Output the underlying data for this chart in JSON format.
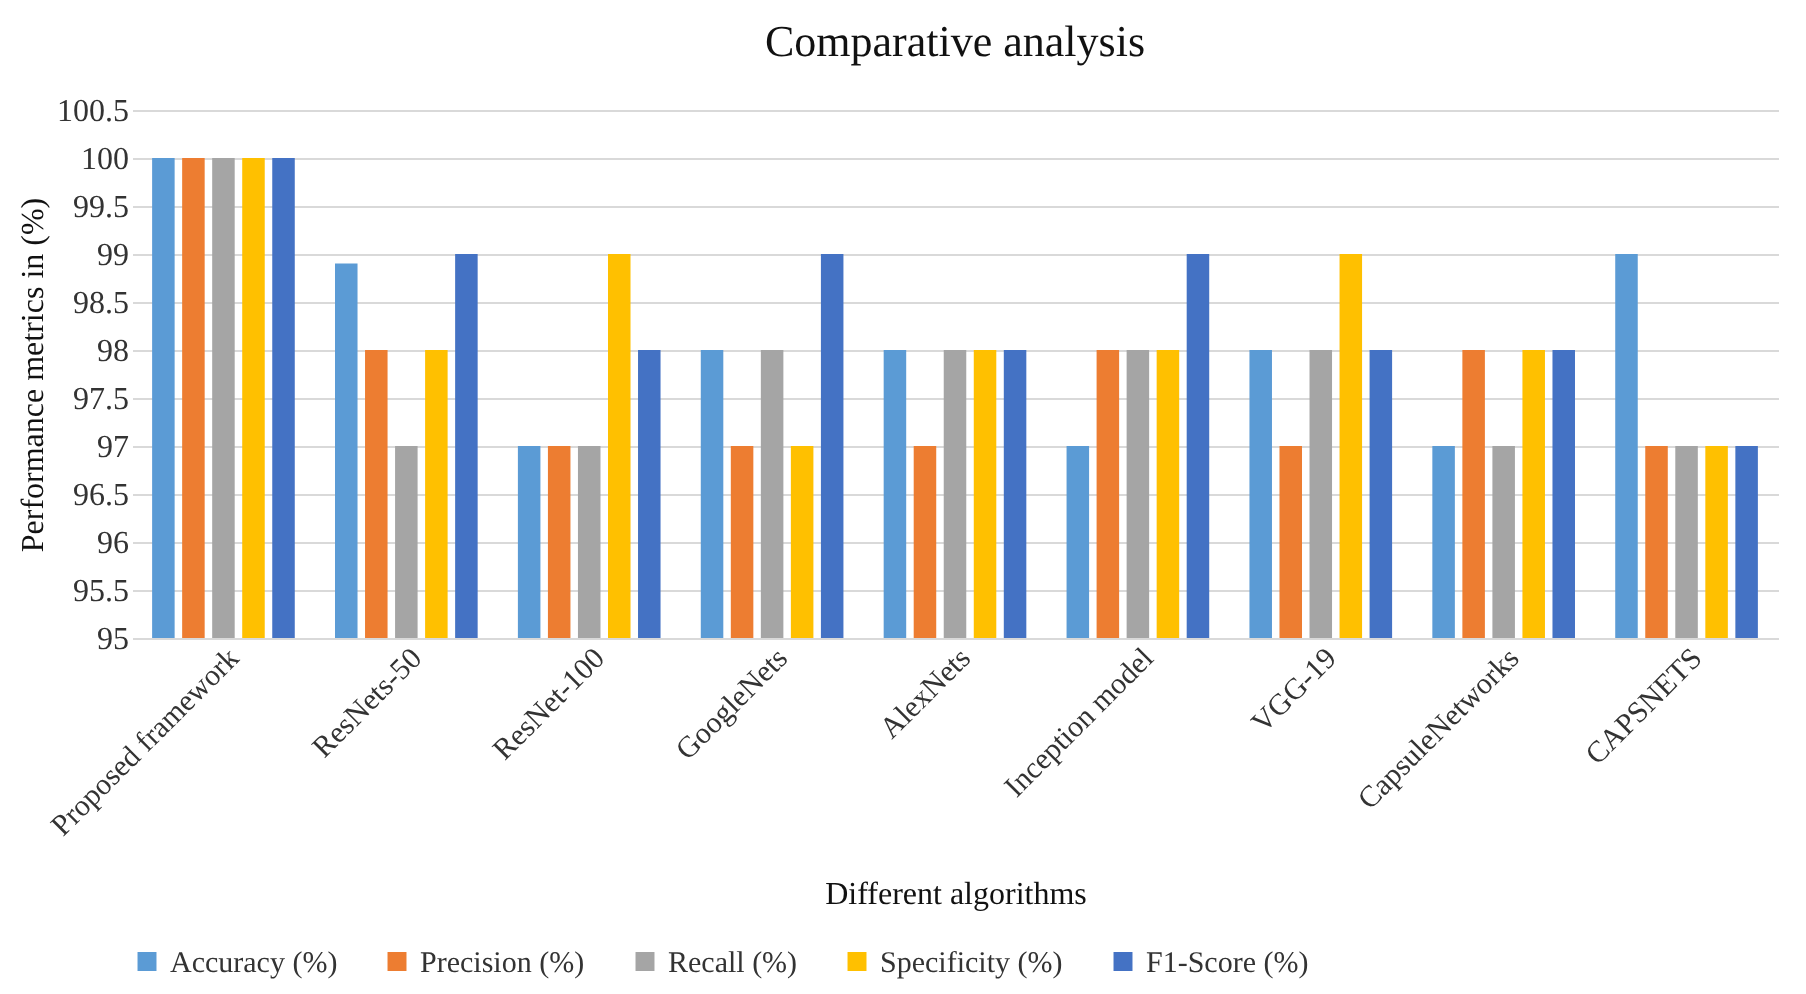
{
  "chart_data": {
    "type": "bar",
    "title": "Comparative analysis",
    "xlabel": "Different algorithms",
    "ylabel": "Performance metrics in (%)",
    "categories": [
      "Proposed framework",
      "ResNets-50",
      "ResNet-100",
      "GoogleNets",
      "AlexNets",
      "Inception model",
      "VGG-19",
      "CapsuleNetworks",
      "CAPSNETS"
    ],
    "series": [
      {
        "name": "Accuracy (%)",
        "color": "#5b9bd5",
        "values": [
          100,
          98.9,
          97,
          98,
          98,
          97,
          98,
          97,
          99
        ]
      },
      {
        "name": "Precision (%)",
        "color": "#ed7d31",
        "values": [
          100,
          98,
          97,
          97,
          97,
          98,
          97,
          98,
          97
        ]
      },
      {
        "name": "Recall (%)",
        "color": "#a5a5a5",
        "values": [
          100,
          97,
          97,
          98,
          98,
          98,
          98,
          97,
          97
        ]
      },
      {
        "name": "Specificity (%)",
        "color": "#ffc000",
        "values": [
          100,
          98,
          99,
          97,
          98,
          98,
          99,
          98,
          97
        ]
      },
      {
        "name": "F1-Score (%)",
        "color": "#4472c4",
        "values": [
          100,
          99,
          98,
          99,
          98,
          99,
          98,
          98,
          97
        ]
      }
    ],
    "ylim": [
      95,
      100.5
    ],
    "yticks": [
      95,
      95.5,
      96,
      96.5,
      97,
      97.5,
      98,
      98.5,
      99,
      99.5,
      100,
      100.5
    ],
    "grid": "y",
    "legend": "bottom"
  }
}
